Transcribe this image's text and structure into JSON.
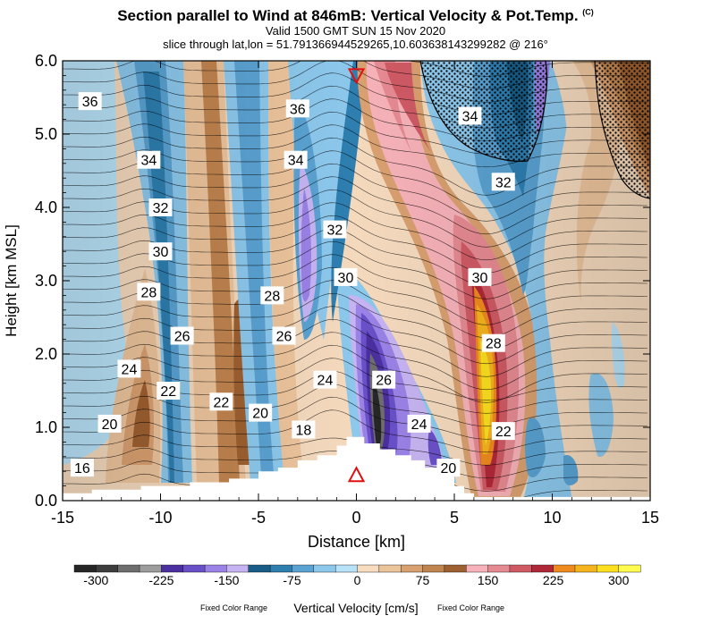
{
  "header": {
    "title": "Section parallel to Wind at 846mB: Vertical Velocity & Pot.Temp.",
    "copyright": "(C)",
    "valid": "Valid 1500 GMT SUN 15 Nov 2020",
    "slice": "slice through lat,lon = 51.791366944529265,10.603638143299282 @ 216°"
  },
  "chart_data": {
    "type": "heatmap",
    "title": "Section parallel to Wind at 846mB: Vertical Velocity & Pot.Temp.",
    "xlabel": "Distance [km]",
    "ylabel": "Height [km MSL]",
    "xlim": [
      -15,
      15
    ],
    "ylim": [
      0,
      6
    ],
    "xticks": [
      -15,
      -10,
      -5,
      0,
      5,
      10,
      15
    ],
    "xtick_labels": [
      "-15",
      "-10",
      "-5",
      "0",
      "5",
      "10",
      "15"
    ],
    "yticks": [
      0,
      1,
      2,
      3,
      4,
      5,
      6
    ],
    "ytick_labels": [
      "0.0",
      "1.0",
      "2.0",
      "3.0",
      "4.0",
      "5.0",
      "6.0"
    ],
    "colorbar": {
      "label": "Vertical Velocity [cm/s]",
      "note_left": "Fixed Color Range",
      "note_right": "Fixed Color Range",
      "tick_values": [
        -300,
        -225,
        -150,
        -75,
        0,
        75,
        150,
        225,
        300
      ],
      "tick_labels": [
        "-300",
        "-225",
        "-150",
        "-75",
        "0",
        "75",
        "150",
        "225",
        "300"
      ],
      "colors": [
        "#262626",
        "#3d3d3d",
        "#6e6e6e",
        "#9c9c9c",
        "#4b2fa0",
        "#6a50c8",
        "#9a82e6",
        "#c6b4f2",
        "#175d88",
        "#2e7eb0",
        "#5aa2d2",
        "#8cc8ec",
        "#b8e2f8",
        "#f7dcc0",
        "#ecc49c",
        "#d9a070",
        "#c0844f",
        "#9e6030",
        "#f6b2b8",
        "#e68a92",
        "#cf5a64",
        "#b02838",
        "#ee8a1e",
        "#f5b41e",
        "#fce020",
        "#fffb50"
      ]
    },
    "series": [
      {
        "name": "Potential temperature contours",
        "labels": [
          {
            "text": "36",
            "x": -13.6,
            "y": 5.45
          },
          {
            "text": "34",
            "x": -10.6,
            "y": 4.65
          },
          {
            "text": "32",
            "x": -10.0,
            "y": 4.0
          },
          {
            "text": "30",
            "x": -10.0,
            "y": 3.4
          },
          {
            "text": "28",
            "x": -10.6,
            "y": 2.85
          },
          {
            "text": "26",
            "x": -8.9,
            "y": 2.25
          },
          {
            "text": "24",
            "x": -11.6,
            "y": 1.8
          },
          {
            "text": "22",
            "x": -9.6,
            "y": 1.5
          },
          {
            "text": "20",
            "x": -12.6,
            "y": 1.05
          },
          {
            "text": "16",
            "x": -14.0,
            "y": 0.45
          },
          {
            "text": "22",
            "x": -6.9,
            "y": 1.35
          },
          {
            "text": "20",
            "x": -4.9,
            "y": 1.2
          },
          {
            "text": "18",
            "x": -2.7,
            "y": 0.97
          },
          {
            "text": "28",
            "x": -4.3,
            "y": 2.8
          },
          {
            "text": "26",
            "x": -3.7,
            "y": 2.25
          },
          {
            "text": "24",
            "x": -1.6,
            "y": 1.65
          },
          {
            "text": "36",
            "x": -3.0,
            "y": 5.35
          },
          {
            "text": "34",
            "x": -3.1,
            "y": 4.65
          },
          {
            "text": "32",
            "x": -1.1,
            "y": 3.7
          },
          {
            "text": "30",
            "x": -0.55,
            "y": 3.05
          },
          {
            "text": "26",
            "x": 1.4,
            "y": 1.65
          },
          {
            "text": "24",
            "x": 3.2,
            "y": 1.05
          },
          {
            "text": "20",
            "x": 4.7,
            "y": 0.45
          },
          {
            "text": "34",
            "x": 5.8,
            "y": 5.25
          },
          {
            "text": "32",
            "x": 7.5,
            "y": 4.35
          },
          {
            "text": "30",
            "x": 6.3,
            "y": 3.05
          },
          {
            "text": "28",
            "x": 7.0,
            "y": 2.15
          },
          {
            "text": "22",
            "x": 7.5,
            "y": 0.95
          }
        ]
      }
    ],
    "markers": [
      {
        "name": "section-point-top",
        "shape": "inverted triangle",
        "color": "#e01010",
        "x": 0,
        "y": 5.8
      },
      {
        "name": "section-point-bottom",
        "shape": "triangle",
        "color": "#e01010",
        "x": 0,
        "y": 0.35
      }
    ],
    "terrain_steps": [
      [
        -15,
        0.1
      ],
      [
        -13.5,
        0.1
      ],
      [
        -13.5,
        0.15
      ],
      [
        -11,
        0.15
      ],
      [
        -11,
        0.2
      ],
      [
        -8.5,
        0.2
      ],
      [
        -8.5,
        0.25
      ],
      [
        -6.5,
        0.25
      ],
      [
        -6.5,
        0.3
      ],
      [
        -5,
        0.3
      ],
      [
        -5,
        0.4
      ],
      [
        -4,
        0.4
      ],
      [
        -4,
        0.45
      ],
      [
        -3,
        0.45
      ],
      [
        -3,
        0.55
      ],
      [
        -2,
        0.55
      ],
      [
        -2,
        0.62
      ],
      [
        -1,
        0.62
      ],
      [
        -1,
        0.75
      ],
      [
        -0.5,
        0.75
      ],
      [
        -0.5,
        0.87
      ],
      [
        0.4,
        0.87
      ],
      [
        0.4,
        0.78
      ],
      [
        1.2,
        0.78
      ],
      [
        1.2,
        0.7
      ],
      [
        2,
        0.7
      ],
      [
        2,
        0.62
      ],
      [
        2.8,
        0.62
      ],
      [
        2.8,
        0.55
      ],
      [
        3.5,
        0.55
      ],
      [
        3.5,
        0.45
      ],
      [
        4.3,
        0.45
      ],
      [
        4.3,
        0.35
      ],
      [
        5,
        0.35
      ],
      [
        5,
        0.2
      ],
      [
        5.5,
        0.2
      ],
      [
        5.5,
        0.1
      ],
      [
        6,
        0.1
      ],
      [
        6,
        0.05
      ],
      [
        15,
        0.05
      ]
    ],
    "grid": false,
    "legend": "bottom colorbar"
  }
}
